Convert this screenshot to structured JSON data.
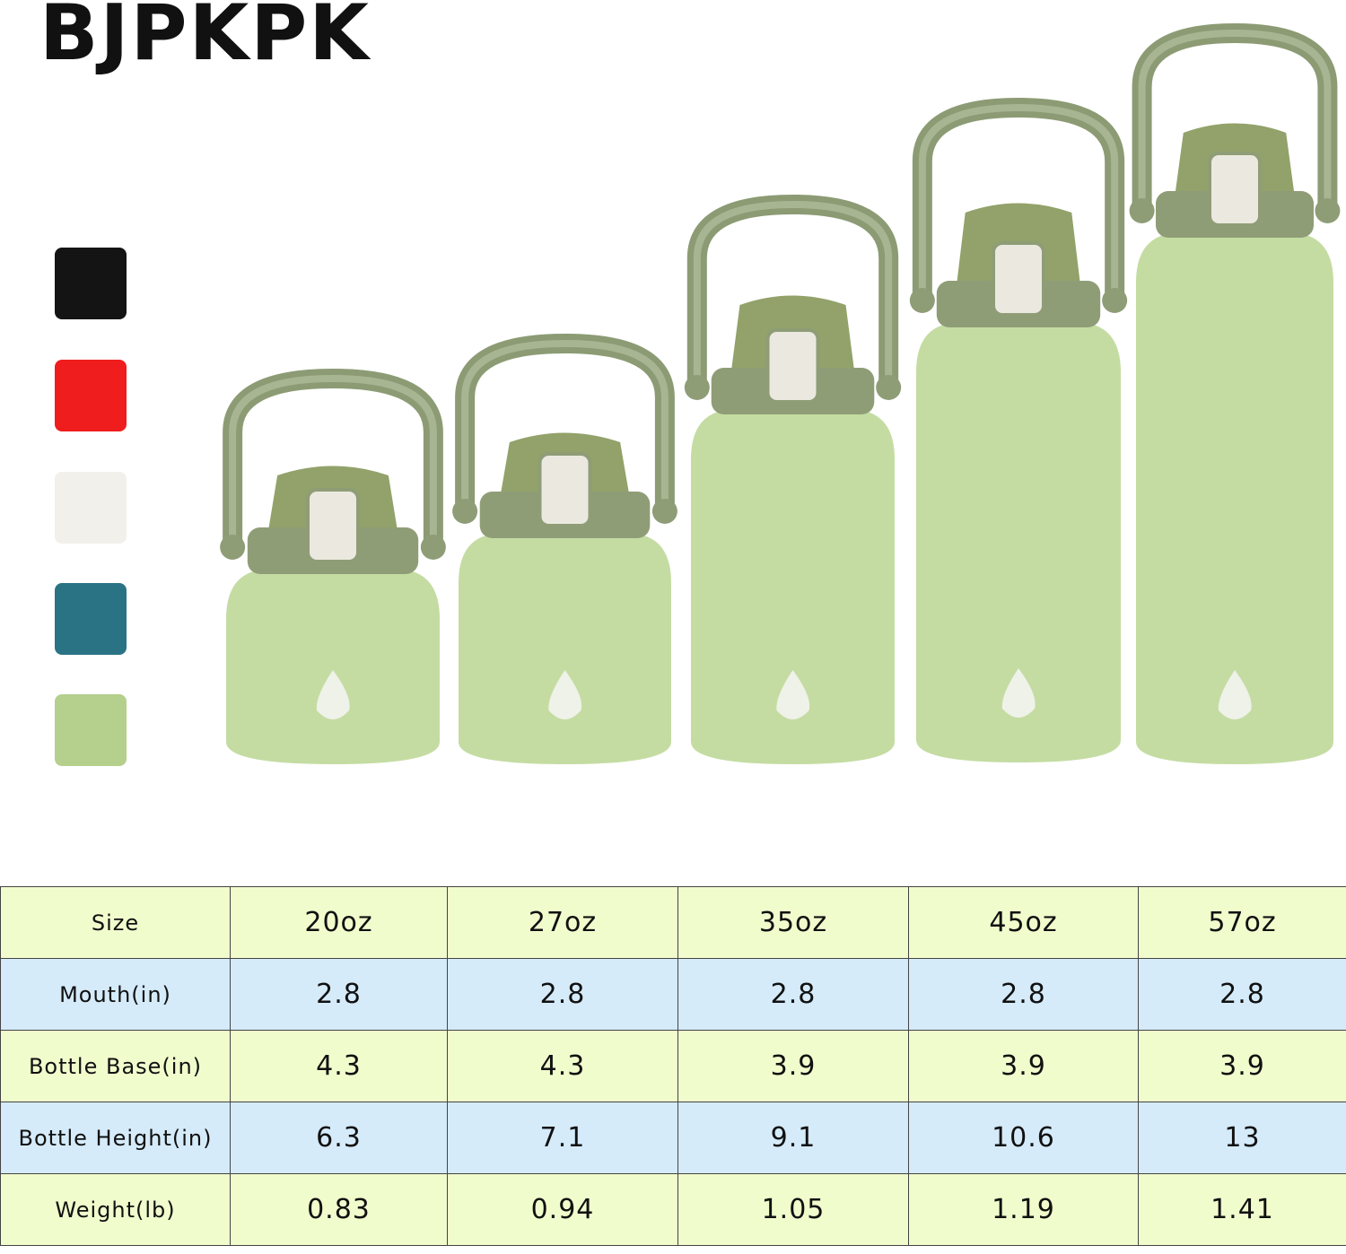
{
  "brand": "BJPKPK",
  "table": {
    "header": [
      "Size",
      "20oz",
      "27oz",
      "35oz",
      "45oz",
      "57oz"
    ],
    "rows": [
      [
        "Mouth(in)",
        "2.8",
        "2.8",
        "2.8",
        "2.8",
        "2.8"
      ],
      [
        "Bottle Base(in)",
        "4.3",
        "4.3",
        "3.9",
        "3.9",
        "3.9"
      ],
      [
        "Bottle Height(in)",
        "6.3",
        "7.1",
        "9.1",
        "10.6",
        "13"
      ],
      [
        "Weight(lb)",
        "0.83",
        "0.94",
        "1.05",
        "1.19",
        "1.41"
      ]
    ]
  }
}
